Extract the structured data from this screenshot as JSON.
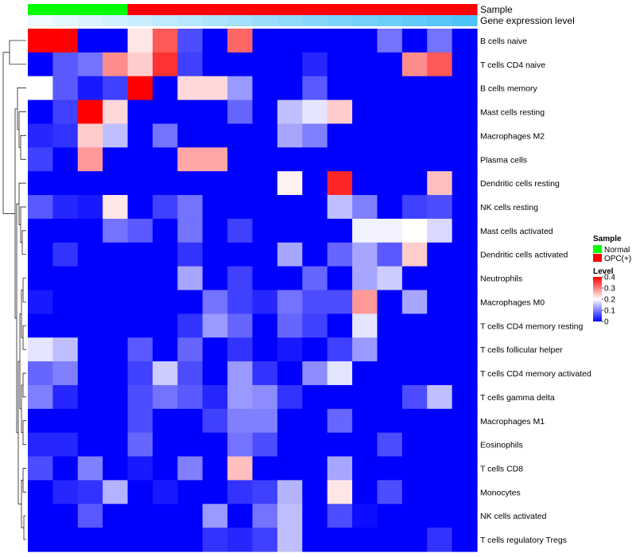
{
  "chart_data": {
    "type": "heatmap",
    "title": "",
    "xlabel": "",
    "ylabel": "",
    "annotation_tracks": [
      {
        "label": "Sample",
        "values": [
          "Normal",
          "Normal",
          "Normal",
          "Normal",
          "OPC(+)",
          "OPC(+)",
          "OPC(+)",
          "OPC(+)",
          "OPC(+)",
          "OPC(+)",
          "OPC(+)",
          "OPC(+)",
          "OPC(+)",
          "OPC(+)",
          "OPC(+)",
          "OPC(+)",
          "OPC(+)",
          "OPC(+)"
        ]
      },
      {
        "label": "Gene expression level",
        "values": [
          0.0,
          0.06,
          0.12,
          0.18,
          0.24,
          0.29,
          0.35,
          0.41,
          0.47,
          0.53,
          0.59,
          0.65,
          0.71,
          0.76,
          0.82,
          0.88,
          0.94,
          1.0
        ]
      }
    ],
    "rows": [
      "B cells naive",
      "T cells CD4 naive",
      "B cells memory",
      "Mast cells resting",
      "Macrophages M2",
      "Plasma cells",
      "Dendritic cells resting",
      "NK cells resting",
      "Mast cells activated",
      "Dendritic cells activated",
      "Neutrophils",
      "Macrophages M0",
      "T cells CD4 memory resting",
      "T cells follicular helper",
      "T cells CD4 memory activated",
      "T cells gamma delta",
      "Macrophages M1",
      "Eosinophils",
      "T cells CD8",
      "Monocytes",
      "NK cells activated",
      "T cells regulatory  Tregs"
    ],
    "column_count": 18,
    "values": [
      [
        0.4,
        0.4,
        0.0,
        0.0,
        0.22,
        0.33,
        0.06,
        0.0,
        0.32,
        0.0,
        0.0,
        0.0,
        0.0,
        0.0,
        0.09,
        0.0,
        0.09,
        0.0
      ],
      [
        0.0,
        0.07,
        0.09,
        0.29,
        0.24,
        0.36,
        0.05,
        0.0,
        0.0,
        0.0,
        0.0,
        0.03,
        0.0,
        0.0,
        0.0,
        0.29,
        0.33,
        0.0
      ],
      [
        0.2,
        0.07,
        0.02,
        0.05,
        0.4,
        0.0,
        0.23,
        0.23,
        0.12,
        0.0,
        0.0,
        0.07,
        0.0,
        0.0,
        0.0,
        0.0,
        0.0,
        0.0
      ],
      [
        0.0,
        0.05,
        0.4,
        0.23,
        0.0,
        0.0,
        0.0,
        0.0,
        0.08,
        0.0,
        0.15,
        0.18,
        0.24,
        0.0,
        0.0,
        0.0,
        0.0,
        0.0
      ],
      [
        0.03,
        0.04,
        0.24,
        0.15,
        0.0,
        0.09,
        0.0,
        0.0,
        0.0,
        0.0,
        0.13,
        0.1,
        0.0,
        0.0,
        0.0,
        0.0,
        0.0,
        0.0
      ],
      [
        0.05,
        0.0,
        0.28,
        0.0,
        0.0,
        0.0,
        0.27,
        0.27,
        0.0,
        0.0,
        0.0,
        0.0,
        0.0,
        0.0,
        0.0,
        0.0,
        0.0,
        0.0
      ],
      [
        0.0,
        0.0,
        0.0,
        0.0,
        0.0,
        0.0,
        0.0,
        0.0,
        0.0,
        0.0,
        0.21,
        0.0,
        0.37,
        0.0,
        0.0,
        0.0,
        0.25,
        0.0
      ],
      [
        0.07,
        0.03,
        0.02,
        0.22,
        0.0,
        0.05,
        0.09,
        0.0,
        0.0,
        0.0,
        0.0,
        0.0,
        0.15,
        0.1,
        0.0,
        0.05,
        0.06,
        0.0
      ],
      [
        0.0,
        0.0,
        0.0,
        0.09,
        0.07,
        0.0,
        0.09,
        0.0,
        0.05,
        0.0,
        0.0,
        0.0,
        0.0,
        0.19,
        0.19,
        0.2,
        0.17,
        0.0
      ],
      [
        0.0,
        0.04,
        0.0,
        0.0,
        0.0,
        0.0,
        0.04,
        0.0,
        0.0,
        0.0,
        0.13,
        0.0,
        0.08,
        0.13,
        0.07,
        0.24,
        0.0,
        0.0
      ],
      [
        0.0,
        0.0,
        0.0,
        0.0,
        0.0,
        0.0,
        0.13,
        0.0,
        0.05,
        0.0,
        0.0,
        0.08,
        0.0,
        0.13,
        0.16,
        0.0,
        0.0,
        0.0
      ],
      [
        0.02,
        0.0,
        0.0,
        0.0,
        0.0,
        0.0,
        0.0,
        0.09,
        0.05,
        0.03,
        0.09,
        0.06,
        0.06,
        0.28,
        0.0,
        0.13,
        0.0,
        0.0
      ],
      [
        0.0,
        0.0,
        0.0,
        0.0,
        0.0,
        0.0,
        0.04,
        0.12,
        0.08,
        0.0,
        0.08,
        0.05,
        0.0,
        0.18,
        0.0,
        0.0,
        0.0,
        0.0
      ],
      [
        0.18,
        0.15,
        0.0,
        0.0,
        0.07,
        0.0,
        0.08,
        0.0,
        0.04,
        0.0,
        0.02,
        0.0,
        0.05,
        0.12,
        0.0,
        0.0,
        0.0,
        0.0
      ],
      [
        0.08,
        0.1,
        0.0,
        0.0,
        0.05,
        0.16,
        0.06,
        0.0,
        0.12,
        0.04,
        0.0,
        0.11,
        0.18,
        0.0,
        0.0,
        0.0,
        0.0,
        0.0
      ],
      [
        0.1,
        0.03,
        0.0,
        0.0,
        0.06,
        0.09,
        0.07,
        0.03,
        0.12,
        0.11,
        0.04,
        0.0,
        0.0,
        0.0,
        0.0,
        0.06,
        0.15,
        0.0
      ],
      [
        0.0,
        0.0,
        0.0,
        0.0,
        0.06,
        0.0,
        0.0,
        0.05,
        0.1,
        0.1,
        0.0,
        0.0,
        0.08,
        0.0,
        0.0,
        0.0,
        0.0,
        0.0
      ],
      [
        0.03,
        0.03,
        0.0,
        0.0,
        0.08,
        0.0,
        0.0,
        0.0,
        0.09,
        0.06,
        0.0,
        0.0,
        0.0,
        0.0,
        0.06,
        0.0,
        0.0,
        0.0
      ],
      [
        0.06,
        0.0,
        0.1,
        0.0,
        0.02,
        0.0,
        0.1,
        0.0,
        0.25,
        0.0,
        0.0,
        0.0,
        0.13,
        0.0,
        0.0,
        0.0,
        0.0,
        0.0
      ],
      [
        0.0,
        0.03,
        0.04,
        0.14,
        0.0,
        0.02,
        0.0,
        0.0,
        0.04,
        0.05,
        0.14,
        0.0,
        0.22,
        0.0,
        0.06,
        0.0,
        0.0,
        0.0
      ],
      [
        0.0,
        0.0,
        0.07,
        0.0,
        0.0,
        0.0,
        0.0,
        0.12,
        0.0,
        0.09,
        0.15,
        0.0,
        0.06,
        0.01,
        0.0,
        0.0,
        0.0,
        0.0
      ],
      [
        0.0,
        0.0,
        0.0,
        0.0,
        0.0,
        0.0,
        0.0,
        0.04,
        0.03,
        0.05,
        0.15,
        0.0,
        0.0,
        0.0,
        0.0,
        0.0,
        0.04,
        0.0
      ]
    ],
    "color_scale": {
      "min": 0,
      "mid": 0.2,
      "max": 0.4,
      "low": "#0000FF",
      "mid_color": "#FFFFFF",
      "high": "#FF0000"
    },
    "legend": {
      "position": "right",
      "sample_title": "Sample",
      "sample_entries": [
        {
          "name": "Normal",
          "color": "#00FF00"
        },
        {
          "name": "OPC(+)",
          "color": "#FF0000"
        }
      ],
      "level_title": "Level",
      "level_ticks": [
        0.4,
        0.3,
        0.2,
        0.1,
        0
      ]
    },
    "row_dendrogram": true
  }
}
